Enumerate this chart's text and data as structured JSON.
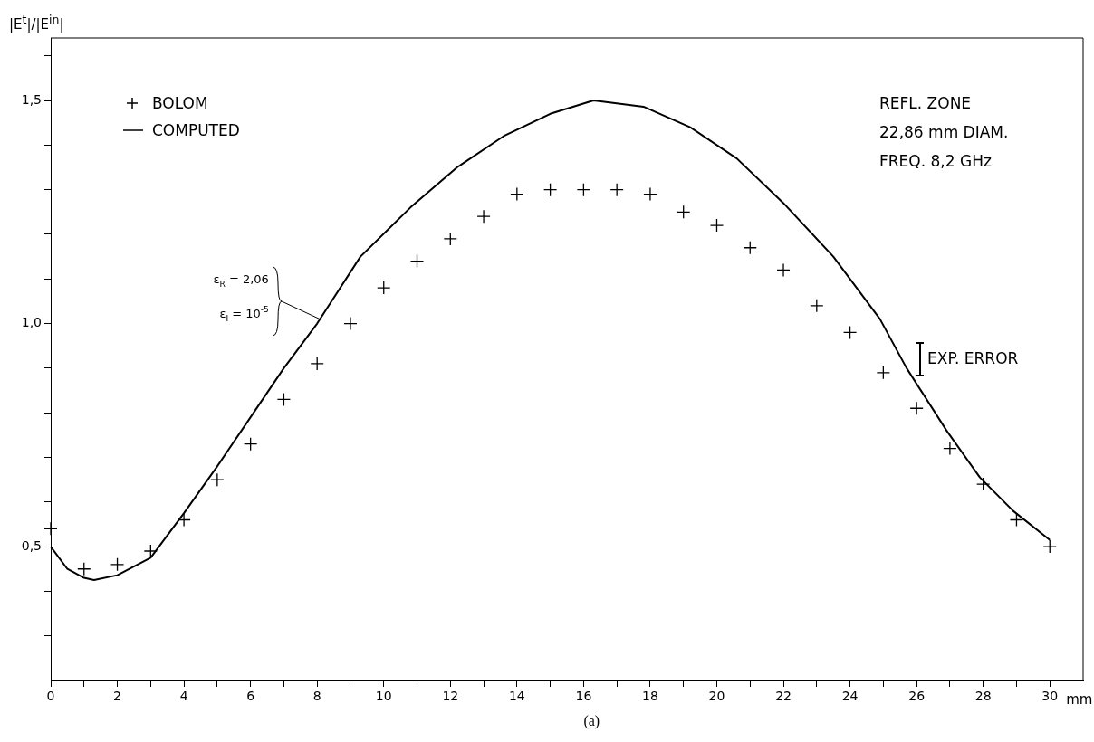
{
  "chart_data": {
    "type": "scatter",
    "ylabel": "|E$^{t}$|/|E$^{in}$|",
    "xlabel": "mm",
    "xlim": [
      0,
      31
    ],
    "ylim": [
      0.2,
      1.64
    ],
    "xticks": [
      0,
      {
        "value": 1,
        "label": null
      },
      2,
      {
        "value": 3,
        "label": null
      },
      4,
      {
        "value": 5,
        "label": null
      },
      6,
      {
        "value": 7,
        "label": null
      },
      8,
      {
        "value": 9,
        "label": null
      },
      10,
      {
        "value": 11,
        "label": null
      },
      12,
      {
        "value": 13,
        "label": null
      },
      14,
      {
        "value": 15,
        "label": null
      },
      16,
      {
        "value": 17,
        "label": null
      },
      18,
      {
        "value": 19,
        "label": null
      },
      20,
      {
        "value": 21,
        "label": null
      },
      22,
      {
        "value": 23,
        "label": null
      },
      24,
      {
        "value": 25,
        "label": null
      },
      26,
      {
        "value": 27,
        "label": null
      },
      28,
      {
        "value": 29,
        "label": null
      },
      30
    ],
    "yticks": [
      {
        "value": 0.3,
        "label": null
      },
      {
        "value": 0.4,
        "label": null
      },
      {
        "value": 0.5,
        "label": "0,5"
      },
      {
        "value": 0.6,
        "label": null
      },
      {
        "value": 0.7,
        "label": null
      },
      {
        "value": 0.8,
        "label": null
      },
      {
        "value": 0.9,
        "label": null
      },
      {
        "value": 1.0,
        "label": "1,0"
      },
      {
        "value": 1.1,
        "label": null
      },
      {
        "value": 1.2,
        "label": null
      },
      {
        "value": 1.3,
        "label": null
      },
      {
        "value": 1.4,
        "label": null
      },
      {
        "value": 1.5,
        "label": "1,5"
      },
      {
        "value": 1.6,
        "label": null
      }
    ],
    "grid": false,
    "legend": "top left",
    "series": [
      {
        "name": "BOLOM",
        "marker": "cross",
        "color": "#000000",
        "x": [
          0,
          1,
          2,
          3,
          4,
          5,
          6,
          7,
          8,
          9,
          10,
          11,
          12,
          13,
          14,
          15,
          16,
          17,
          18,
          19,
          20,
          21,
          22,
          23,
          24,
          25,
          26,
          27,
          28,
          29,
          30
        ],
        "values": [
          0.54,
          0.45,
          0.46,
          0.49,
          0.56,
          0.65,
          0.73,
          0.83,
          0.91,
          1.0,
          1.08,
          1.14,
          1.19,
          1.24,
          1.29,
          1.3,
          1.3,
          1.3,
          1.29,
          1.25,
          1.22,
          1.17,
          1.12,
          1.04,
          0.98,
          0.89,
          0.81,
          0.72,
          0.64,
          0.56,
          0.5
        ]
      },
      {
        "name": "COMPUTED",
        "type": "line",
        "marker": "none",
        "color": "#000000",
        "x": [
          0,
          0.5,
          1,
          1.3,
          2,
          3,
          4,
          5,
          6,
          7,
          8,
          9.3,
          10.8,
          12.2,
          13.6,
          15,
          16.3,
          17.8,
          19.2,
          20.6,
          22,
          23.5,
          24.9,
          25.7,
          26.9,
          27.9,
          28.9,
          30
        ],
        "values": [
          0.5,
          0.45,
          0.43,
          0.425,
          0.436,
          0.475,
          0.575,
          0.68,
          0.79,
          0.9,
          1.0,
          1.15,
          1.26,
          1.35,
          1.42,
          1.47,
          1.5,
          1.486,
          1.44,
          1.37,
          1.27,
          1.15,
          1.01,
          0.9,
          0.76,
          0.655,
          0.58,
          0.515
        ]
      }
    ],
    "annotations": [
      "REFL. ZONE",
      "22,86 mm DIAM.",
      "FREQ. 8,2 GHz",
      "(a)",
      "ε$_{R}$ = 2,06",
      {
        "text": "ε$_{I}$ = 10$^{-5}$",
        "x": 8.1,
        "y": 1.01
      },
      "EXP. ERROR"
    ]
  }
}
